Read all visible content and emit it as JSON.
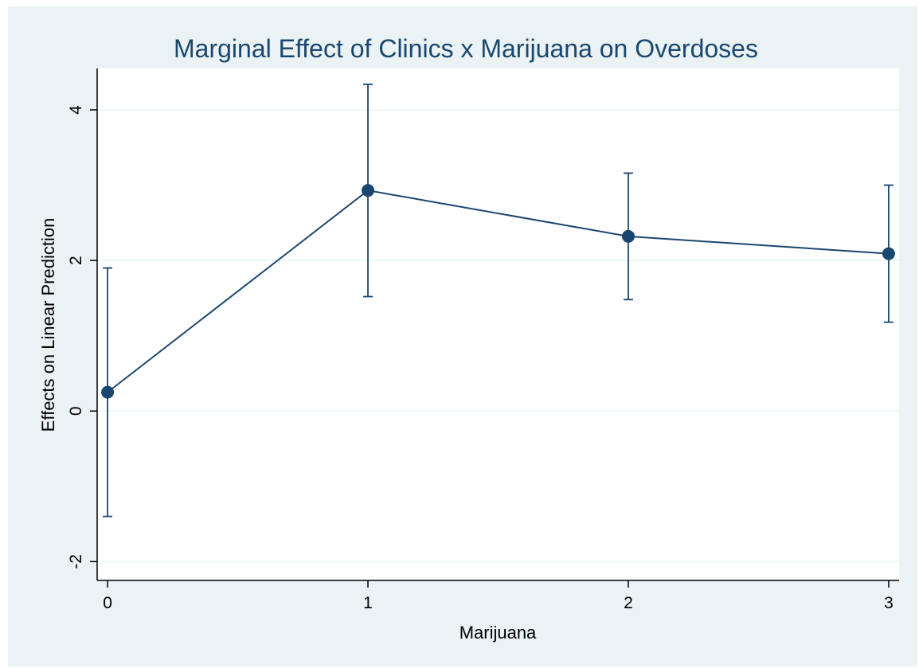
{
  "chart_data": {
    "type": "line",
    "title": "Marginal Effect of Clinics x Marijuana on Overdoses",
    "xlabel": "Marijuana",
    "ylabel": "Effects on Linear Prediction",
    "x": [
      0,
      1,
      2,
      3
    ],
    "series": [
      {
        "values": [
          0.25,
          2.93,
          2.32,
          2.09
        ],
        "ci_lower": [
          -1.4,
          1.52,
          1.48,
          1.18
        ],
        "ci_upper": [
          1.9,
          4.34,
          3.16,
          3.0
        ]
      }
    ],
    "xlim": [
      -0.04,
      3.04
    ],
    "ylim": [
      -2.25,
      4.55
    ],
    "xticks": [
      0,
      1,
      2,
      3
    ],
    "yticks": [
      -2,
      0,
      2,
      4
    ],
    "grid": true,
    "legend": "none",
    "colors": {
      "background": "#eaf2f3",
      "plot_background": "#ffffff",
      "series": "#1a476f",
      "title": "#1a476f",
      "grid": "#eaf2f3"
    }
  }
}
